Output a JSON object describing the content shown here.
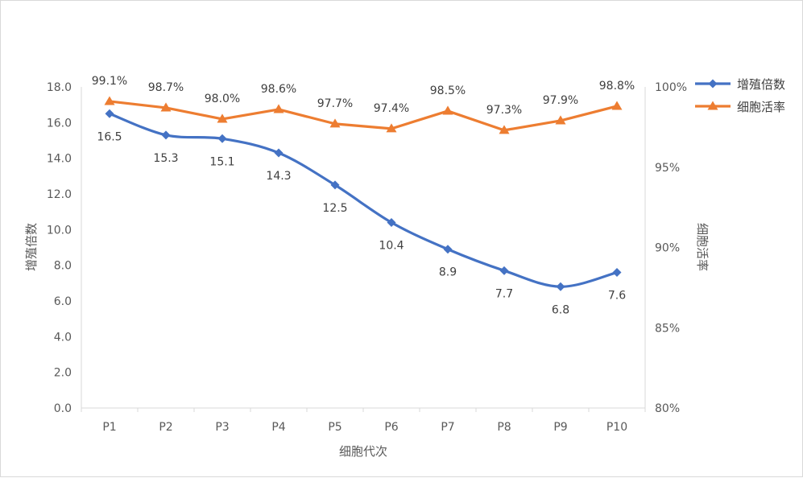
{
  "chart_data": {
    "type": "line",
    "categories": [
      "P1",
      "P2",
      "P3",
      "P4",
      "P5",
      "P6",
      "P7",
      "P8",
      "P9",
      "P10"
    ],
    "xlabel": "细胞代次",
    "y_left": {
      "label": "增殖倍数",
      "lim": [
        0,
        18
      ],
      "ticks": [
        "0.0",
        "2.0",
        "4.0",
        "6.0",
        "8.0",
        "10.0",
        "12.0",
        "14.0",
        "16.0",
        "18.0"
      ]
    },
    "y_right": {
      "label": "细胞活率",
      "lim": [
        80,
        100
      ],
      "ticks": [
        "80%",
        "85%",
        "90%",
        "95%",
        "100%"
      ]
    },
    "series": [
      {
        "name": "增殖倍数",
        "axis": "left",
        "color": "#4472C4",
        "marker": "diamond",
        "smooth": true,
        "values": [
          16.5,
          15.3,
          15.1,
          14.3,
          12.5,
          10.4,
          8.9,
          7.7,
          6.8,
          7.6
        ],
        "labels": [
          "16.5",
          "15.3",
          "15.1",
          "14.3",
          "12.5",
          "10.4",
          "8.9",
          "7.7",
          "6.8",
          "7.6"
        ]
      },
      {
        "name": "细胞活率",
        "axis": "right",
        "color": "#ED7D31",
        "marker": "triangle",
        "smooth": false,
        "values": [
          99.1,
          98.7,
          98.0,
          98.6,
          97.7,
          97.4,
          98.5,
          97.3,
          97.9,
          98.8
        ],
        "labels": [
          "99.1%",
          "98.7%",
          "98.0%",
          "98.6%",
          "97.7%",
          "97.4%",
          "98.5%",
          "97.3%",
          "97.9%",
          "98.8%"
        ]
      }
    ],
    "legend": "right",
    "grid": false
  }
}
